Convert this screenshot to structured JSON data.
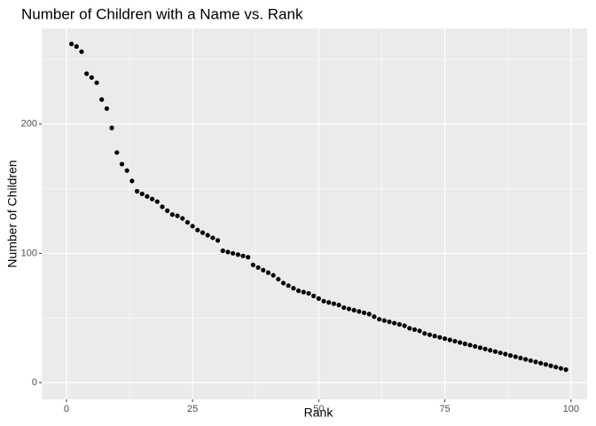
{
  "chart_data": {
    "type": "scatter",
    "title": "Number of Children with a Name vs. Rank",
    "x_label": "Rank",
    "y_label": "Number of Children",
    "x": [
      1,
      2,
      3,
      4,
      5,
      6,
      7,
      8,
      9,
      10,
      11,
      12,
      13,
      14,
      15,
      16,
      17,
      18,
      19,
      20,
      21,
      22,
      23,
      24,
      25,
      26,
      27,
      28,
      29,
      30,
      31,
      32,
      33,
      34,
      35,
      36,
      37,
      38,
      39,
      40,
      41,
      42,
      43,
      44,
      45,
      46,
      47,
      48,
      49,
      50,
      51,
      52,
      53,
      54,
      55,
      56,
      57,
      58,
      59,
      60,
      61,
      62,
      63,
      64,
      65,
      66,
      67,
      68,
      69,
      70,
      71,
      72,
      73,
      74,
      75,
      76,
      77,
      78,
      79,
      80,
      81,
      82,
      83,
      84,
      85,
      86,
      87,
      88,
      89,
      90,
      91,
      92,
      93,
      94,
      95,
      96,
      97,
      98,
      99
    ],
    "values": [
      262,
      260,
      256,
      239,
      236,
      232,
      219,
      212,
      197,
      178,
      169,
      164,
      156,
      148,
      146,
      144,
      142,
      140,
      136,
      133,
      130,
      129,
      127,
      124,
      121,
      118,
      116,
      114,
      112,
      110,
      102,
      101,
      100,
      99,
      98,
      97,
      91,
      89,
      87,
      85,
      83,
      80,
      77,
      75,
      73,
      71,
      70,
      69,
      67,
      65,
      63,
      62,
      61,
      60,
      58,
      57,
      56,
      55,
      54,
      53,
      51,
      49,
      48,
      47,
      46,
      45,
      44,
      42,
      41,
      40,
      38,
      37,
      36,
      35,
      34,
      33,
      32,
      31,
      30,
      29,
      28,
      27,
      26,
      25,
      24,
      23,
      22,
      21,
      20,
      19,
      18,
      17,
      16,
      15,
      14,
      13,
      12,
      11,
      10
    ],
    "color": "#000000",
    "xlim": [
      -4.9,
      103.2
    ],
    "ylim": [
      -13,
      274
    ],
    "xticks": [
      0,
      25,
      50,
      75,
      100
    ],
    "yticks": [
      0,
      100,
      200
    ],
    "grid": true
  }
}
